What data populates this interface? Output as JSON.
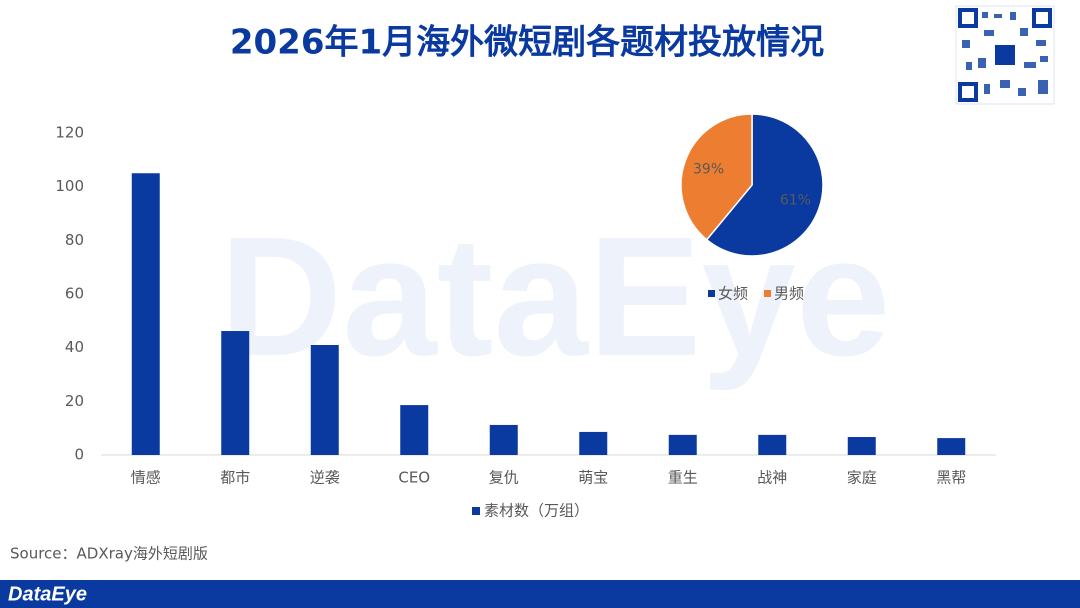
{
  "title": "2026年1月海外微短剧各题材投放情况",
  "watermark": "DataEye",
  "source": "Source：ADXray海外短剧版",
  "brand": "DataEye",
  "chart_data": [
    {
      "type": "bar",
      "categories": [
        "情感",
        "都市",
        "逆袭",
        "CEO",
        "复仇",
        "萌宝",
        "重生",
        "战神",
        "家庭",
        "黑帮"
      ],
      "series": [
        {
          "name": "素材数（万组）",
          "color": "#0a3aa0",
          "values": [
            105,
            46.2,
            41,
            18.6,
            11.2,
            8.6,
            7.5,
            7.5,
            6.7,
            6.3
          ]
        }
      ],
      "ylim": [
        0,
        120
      ],
      "yticks": [
        0,
        20,
        40,
        60,
        80,
        100,
        120
      ],
      "grid": false,
      "legend": "bottom"
    },
    {
      "type": "pie",
      "categories": [
        "女频",
        "男频"
      ],
      "values": [
        61,
        39
      ],
      "value_labels": [
        "61%",
        "39%"
      ],
      "colors": [
        "#0a3aa0",
        "#ed7d31"
      ],
      "legend": "bottom"
    }
  ]
}
